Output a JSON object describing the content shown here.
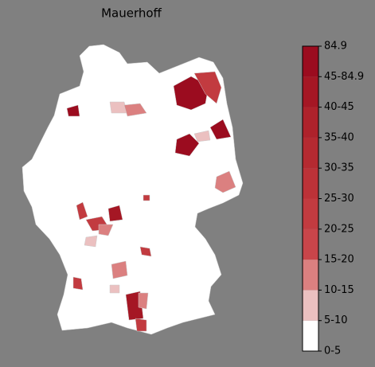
{
  "chart_data": {
    "type": "choropleth",
    "title": "Mauerhoff",
    "colorbar": {
      "labels": [
        "0-5",
        "5-10",
        "10-15",
        "15-20",
        "20-25",
        "25-30",
        "30-35",
        "35-40",
        "40-45",
        "45-84.9",
        "84.9"
      ],
      "colors": [
        "#ffffff",
        "#ebc0c0",
        "#db8080",
        "#c9454a",
        "#c23b40",
        "#bc3238",
        "#b52a31",
        "#ae222b",
        "#a51724",
        "#9b0c1f"
      ]
    }
  }
}
